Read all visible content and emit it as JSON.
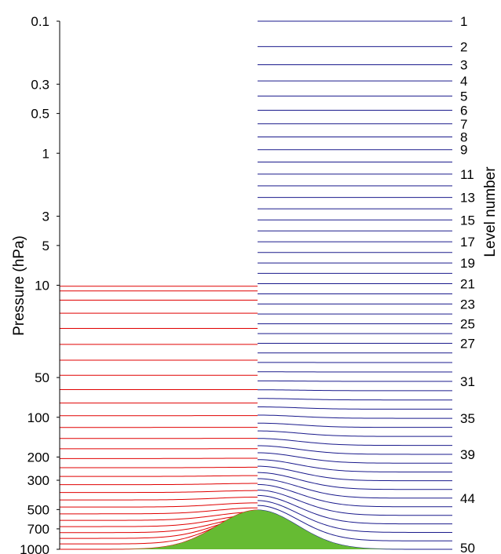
{
  "chart_data": {
    "type": "line",
    "ylabel_left": "Pressure (hPa)",
    "ylabel_right": "Level number",
    "y_scale": "log",
    "y_range": [
      0.1,
      1000
    ],
    "pressure_ticks": [
      "0.1",
      "0.3",
      "0.5",
      "1",
      "3",
      "5",
      "10",
      "50",
      "100",
      "200",
      "300",
      "500",
      "700",
      "1000"
    ],
    "level_labels": [
      "1",
      "2",
      "3",
      "4",
      "5",
      "6",
      "7",
      "8",
      "9",
      "11",
      "13",
      "15",
      "17",
      "19",
      "21",
      "23",
      "25",
      "27",
      "31",
      "35",
      "39",
      "44",
      "50"
    ],
    "left_scheme_levels": 28,
    "right_scheme_levels": 50,
    "left_series_color": "#e00000",
    "right_series_color": "#1a1a8c",
    "terrain_color": "#66bb33",
    "grid": false
  }
}
